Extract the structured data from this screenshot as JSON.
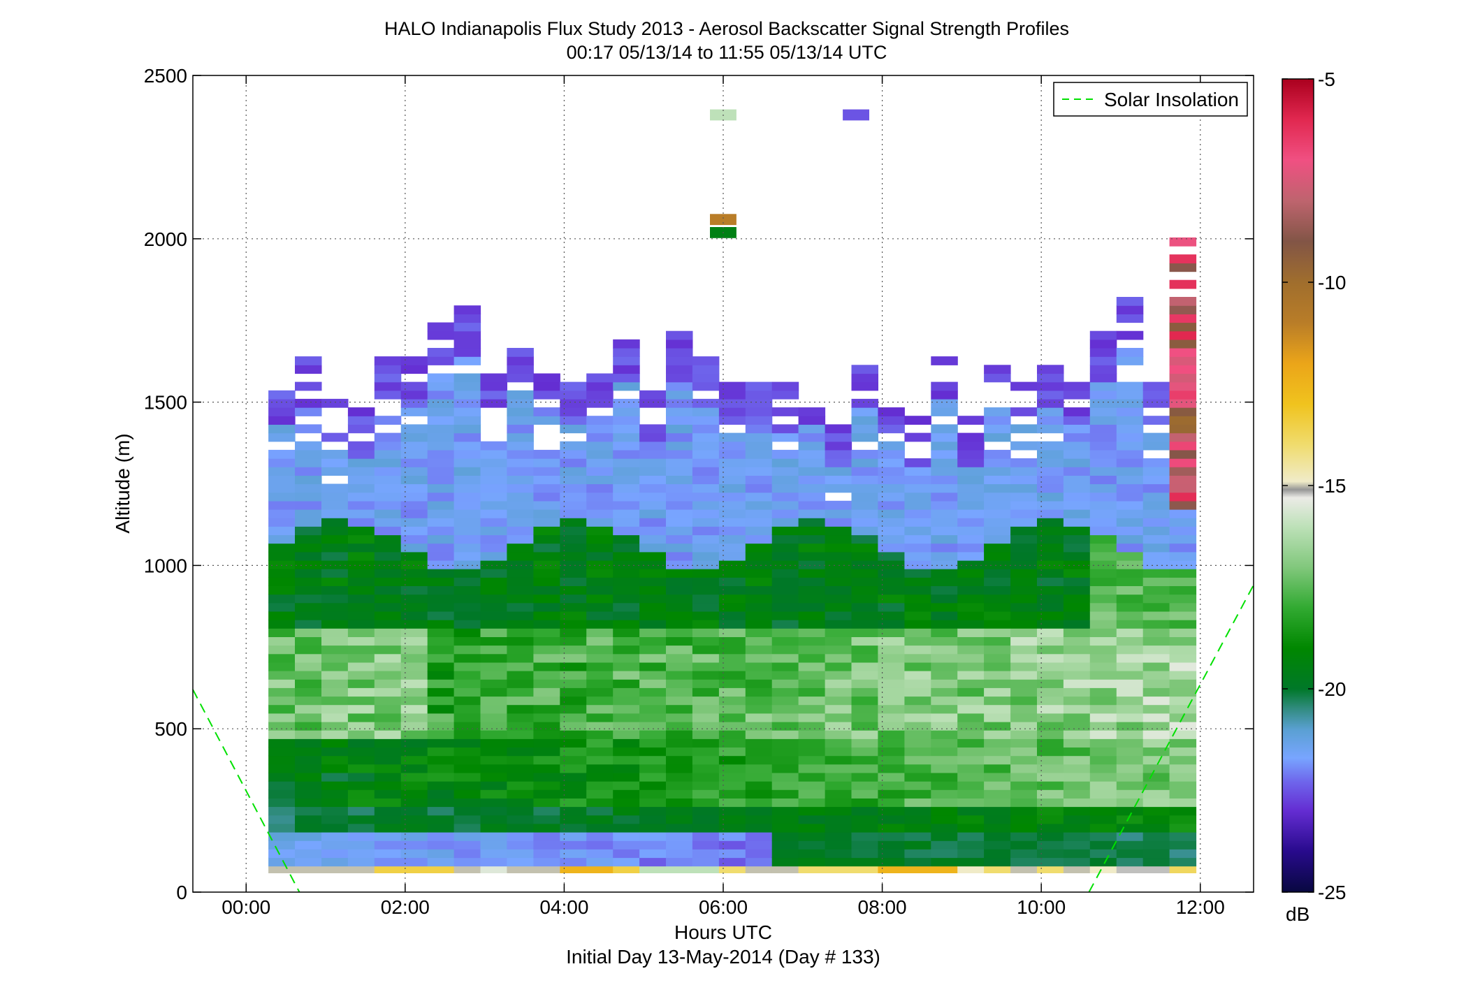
{
  "chart_data": {
    "type": "heatmap",
    "title": "HALO Indianapolis Flux Study 2013 - Aerosol Backscatter Signal Strength Profiles",
    "subtitle": "00:17 05/13/14 to 11:55 05/13/14  UTC",
    "xlabel": "Hours UTC",
    "xlabel2": "Initial Day 13-May-2014 (Day # 133)",
    "ylabel": "Altitude (m)",
    "xlim": [
      -0.67,
      12.67
    ],
    "ylim": [
      0,
      2500
    ],
    "x_ticks": [
      0,
      2,
      4,
      6,
      8,
      10,
      12
    ],
    "x_tick_labels": [
      "00:00",
      "02:00",
      "04:00",
      "06:00",
      "08:00",
      "10:00",
      "12:00"
    ],
    "y_ticks": [
      0,
      500,
      1000,
      1500,
      2000,
      2500
    ],
    "y_tick_labels": [
      "0",
      "500",
      "1000",
      "1500",
      "2000",
      "2500"
    ],
    "grid": true,
    "time_bin_hours": 0.3333,
    "altitude_bin_m": 26,
    "colorbar": {
      "label": "dB",
      "range": [
        -25,
        -5
      ],
      "ticks": [
        -25,
        -20,
        -15,
        -10,
        -5
      ],
      "tick_labels": [
        "-25",
        "-20",
        "-15",
        "-10",
        "-5"
      ]
    },
    "legend": {
      "placement": "top-right",
      "entries": [
        {
          "name": "Solar Insolation",
          "style": "dashed",
          "color": "#00e000"
        }
      ]
    },
    "series": [
      {
        "name": "Solar Insolation",
        "segments": [
          {
            "x": [
              -0.67,
              0.67
            ],
            "y": [
              620,
              0
            ]
          },
          {
            "x": [
              10.6,
              12.67
            ],
            "y": [
              0,
              940
            ]
          }
        ]
      }
    ],
    "profile_summary": {
      "cells": "time × altitude bins of signal strength (dB)",
      "boundary_layer_top_m": [
        1560,
        1620,
        1500,
        1460,
        1640,
        1620,
        1720,
        1780,
        1600,
        1700,
        1600,
        1560,
        1620,
        1680,
        1520,
        1700,
        1620,
        1560,
        1560,
        1540,
        1560,
        1440,
        1600,
        1540,
        1440,
        1640,
        1440,
        1600,
        1560,
        1600,
        1560,
        1700,
        1800,
        1560,
        2000
      ],
      "surface_values_db": [
        -15,
        -15,
        -15,
        -15,
        -13.5,
        -13.5,
        -13.5,
        -15,
        -15.5,
        -15,
        -15,
        -12.5,
        -12.5,
        -13.5,
        -16,
        -16,
        -16,
        -14,
        -15,
        -15,
        -14,
        -14,
        -14,
        -12.5,
        -12.5,
        -12.5,
        -14.9,
        -14,
        -15,
        -14,
        -15,
        -14.9,
        -15.2,
        -15.2,
        -13.8
      ],
      "isolated_returns": [
        {
          "x": 6.0,
          "y": 2370,
          "value": -16.0
        },
        {
          "x": 7.67,
          "y": 2370,
          "value": -22.5
        },
        {
          "x": 6.0,
          "y": 2050,
          "value": -11.0
        },
        {
          "x": 6.0,
          "y": 2010,
          "value": -19.5
        }
      ]
    }
  }
}
